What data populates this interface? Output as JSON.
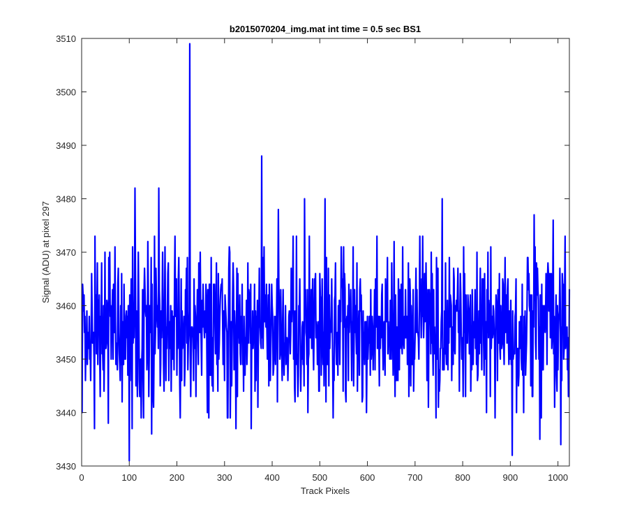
{
  "chart_data": {
    "type": "line",
    "title": "b2015070204_img.mat int time = 0.5 sec   BS1",
    "xlabel": "Track Pixels",
    "ylabel": "Signal (ADU) at pixel 297",
    "xlim": [
      0,
      1024
    ],
    "ylim": [
      3430,
      3510
    ],
    "xticks": [
      "0",
      "100",
      "200",
      "300",
      "400",
      "500",
      "600",
      "700",
      "800",
      "900",
      "1000"
    ],
    "yticks": [
      "3430",
      "3440",
      "3450",
      "3460",
      "3470",
      "3480",
      "3490",
      "3500",
      "3510"
    ],
    "grid": false,
    "legend": "none",
    "series": [
      {
        "color": "#0000ff",
        "mean": 3456,
        "point_count": 1024,
        "x_start": 1,
        "y_start": 3440,
        "y_end": 3463,
        "peaks": [
          {
            "x": 112,
            "y": 3482
          },
          {
            "x": 162,
            "y": 3482
          },
          {
            "x": 227,
            "y": 3509
          },
          {
            "x": 378,
            "y": 3488
          },
          {
            "x": 413,
            "y": 3478
          },
          {
            "x": 468,
            "y": 3480
          },
          {
            "x": 511,
            "y": 3480
          },
          {
            "x": 757,
            "y": 3480
          },
          {
            "x": 950,
            "y": 3477
          },
          {
            "x": 990,
            "y": 3476
          },
          {
            "x": 1015,
            "y": 3473
          }
        ],
        "troughs": [
          {
            "x": 100,
            "y": 3431
          },
          {
            "x": 106,
            "y": 3437
          },
          {
            "x": 27,
            "y": 3437
          },
          {
            "x": 56,
            "y": 3438
          },
          {
            "x": 147,
            "y": 3436
          },
          {
            "x": 207,
            "y": 3439
          },
          {
            "x": 324,
            "y": 3437
          },
          {
            "x": 356,
            "y": 3437
          },
          {
            "x": 904,
            "y": 3432
          },
          {
            "x": 962,
            "y": 3435
          },
          {
            "x": 1006,
            "y": 3434
          }
        ]
      }
    ]
  }
}
